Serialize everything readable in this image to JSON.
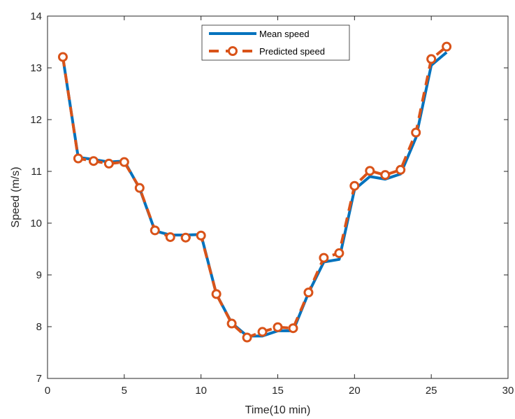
{
  "chart_data": {
    "type": "line",
    "xlabel": "Time(10 min)",
    "ylabel": "Speed (m/s)",
    "xlim": [
      0,
      30
    ],
    "ylim": [
      7,
      14
    ],
    "xticks": [
      0,
      5,
      10,
      15,
      20,
      25,
      30
    ],
    "yticks": [
      7,
      8,
      9,
      10,
      11,
      12,
      13,
      14
    ],
    "grid": false,
    "legend_position": "top-center",
    "series": [
      {
        "name": "Mean speed",
        "color": "#0072BD",
        "style": "solid",
        "marker": "none",
        "x": [
          1,
          2,
          3,
          4,
          5,
          6,
          7,
          8,
          9,
          10,
          11,
          12,
          13,
          14,
          15,
          16,
          17,
          18,
          19,
          20,
          21,
          22,
          23,
          24,
          25,
          26
        ],
        "y": [
          13.2,
          11.27,
          11.23,
          11.18,
          11.2,
          10.67,
          9.85,
          9.77,
          9.77,
          9.78,
          8.63,
          8.07,
          7.82,
          7.82,
          7.92,
          7.92,
          8.65,
          9.25,
          9.3,
          10.65,
          10.9,
          10.85,
          10.95,
          11.65,
          13.05,
          13.3
        ]
      },
      {
        "name": "Predicted speed",
        "color": "#D95319",
        "style": "dashed",
        "marker": "circle",
        "x": [
          1,
          2,
          3,
          4,
          5,
          6,
          7,
          8,
          9,
          10,
          11,
          12,
          13,
          14,
          15,
          16,
          17,
          18,
          19,
          20,
          21,
          22,
          23,
          24,
          25,
          26
        ],
        "y": [
          13.21,
          11.25,
          11.2,
          11.15,
          11.18,
          10.68,
          9.86,
          9.73,
          9.72,
          9.76,
          8.63,
          8.06,
          7.79,
          7.9,
          7.99,
          7.97,
          8.66,
          9.33,
          9.42,
          10.72,
          11.01,
          10.93,
          11.03,
          11.75,
          13.17,
          13.41
        ]
      }
    ]
  }
}
